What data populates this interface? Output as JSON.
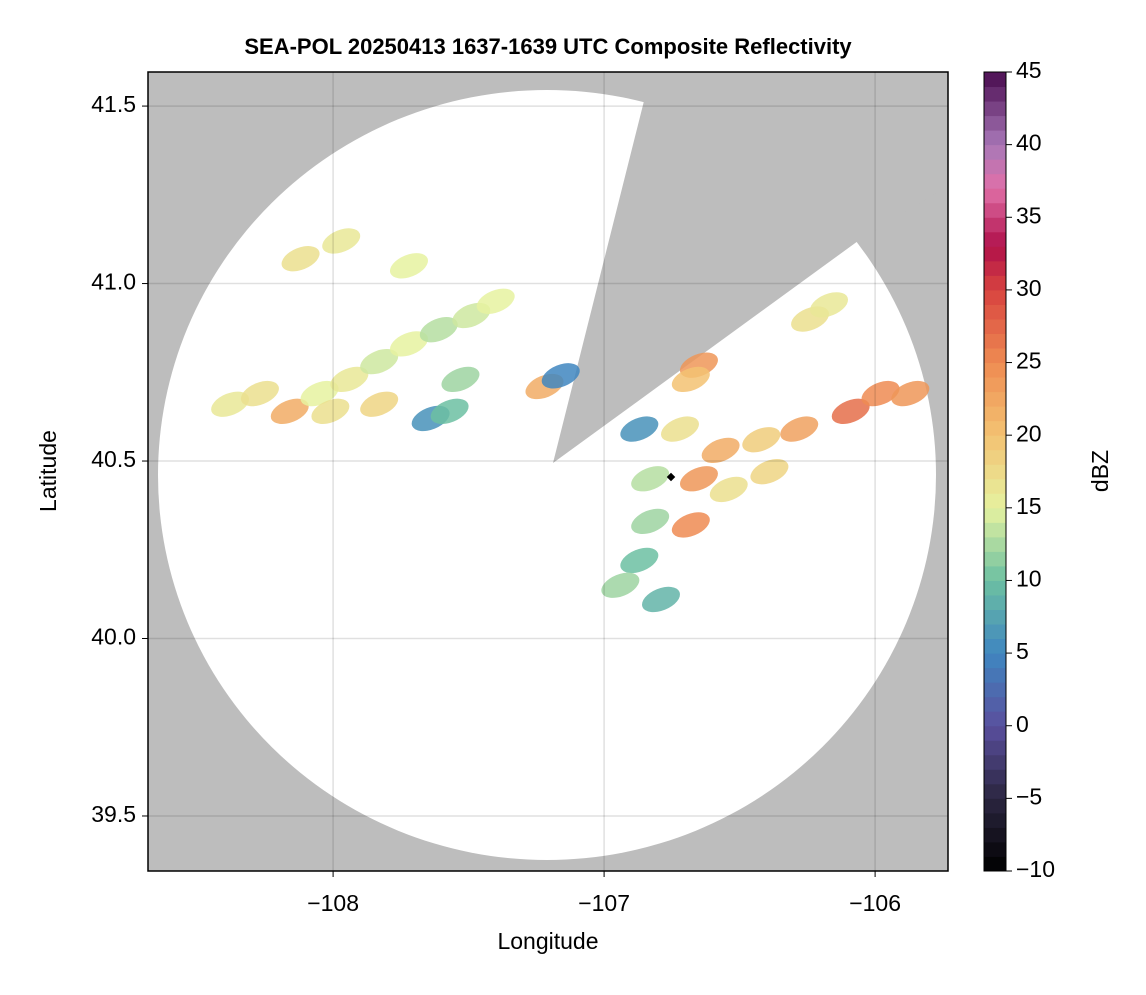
{
  "chart_data": {
    "type": "radar-map",
    "title": "SEA-POL 20250413 1637-1639 UTC Composite Reflectivity",
    "x_label": "Longitude",
    "y_label": "Latitude",
    "colorbar_label": "dBZ",
    "xlim": [
      -108.683,
      -105.731
    ],
    "ylim": [
      39.345,
      41.596
    ],
    "xticks": [
      {
        "value": -108,
        "label": "−108"
      },
      {
        "value": -107,
        "label": "−107"
      },
      {
        "value": -106,
        "label": "−106"
      }
    ],
    "yticks": [
      {
        "value": 39.5,
        "label": "39.5"
      },
      {
        "value": 40.0,
        "label": "40.0"
      },
      {
        "value": 40.5,
        "label": "40.5"
      },
      {
        "value": 41.0,
        "label": "41.0"
      },
      {
        "value": 41.5,
        "label": "41.5"
      }
    ],
    "grid": true,
    "clim": [
      -10,
      45
    ],
    "cticks": [
      {
        "value": -10,
        "label": "−10"
      },
      {
        "value": -5,
        "label": "−5"
      },
      0,
      5,
      10,
      15,
      20,
      25,
      30,
      35,
      40,
      45
    ],
    "colormap": [
      {
        "value": -10,
        "color": "#000000"
      },
      {
        "value": -5,
        "color": "#2b2640"
      },
      {
        "value": 0,
        "color": "#5a4f9e"
      },
      {
        "value": 5,
        "color": "#3f86c0"
      },
      {
        "value": 10,
        "color": "#6cc0a2"
      },
      {
        "value": 15,
        "color": "#e6f2a0"
      },
      {
        "value": 20,
        "color": "#f3c272"
      },
      {
        "value": 25,
        "color": "#ee8b52"
      },
      {
        "value": 30,
        "color": "#d8433f"
      },
      {
        "value": 33,
        "color": "#b0104a"
      },
      {
        "value": 37,
        "color": "#e070a8"
      },
      {
        "value": 40,
        "color": "#a878b8"
      },
      {
        "value": 45,
        "color": "#4a0c50"
      }
    ],
    "echoes": {
      "lon": [
        -108.38,
        -108.27,
        -108.16,
        -108.05,
        -107.94,
        -108.01,
        -107.83,
        -107.72,
        -107.61,
        -107.49,
        -107.4,
        -107.64,
        -107.57,
        -107.53,
        -107.83,
        -108.12,
        -107.97,
        -107.72,
        -107.22,
        -107.16,
        -106.65,
        -106.68,
        -106.87,
        -106.72,
        -106.57,
        -106.42,
        -106.28,
        -106.09,
        -105.98,
        -105.87,
        -106.83,
        -106.65,
        -106.54,
        -106.83,
        -106.68,
        -106.87,
        -106.94,
        -106.79,
        -106.39,
        -106.24,
        -106.17
      ],
      "lat": [
        40.66,
        40.69,
        40.64,
        40.69,
        40.73,
        40.64,
        40.78,
        40.83,
        40.87,
        40.91,
        40.95,
        40.62,
        40.64,
        40.73,
        40.66,
        41.07,
        41.12,
        41.05,
        40.71,
        40.74,
        40.77,
        40.73,
        40.59,
        40.59,
        40.53,
        40.56,
        40.59,
        40.64,
        40.69,
        40.69,
        40.45,
        40.45,
        40.42,
        40.33,
        40.32,
        40.22,
        40.15,
        40.11,
        40.47,
        40.9,
        40.94
      ],
      "dbz": [
        16,
        17,
        22,
        15,
        16,
        17,
        14,
        15,
        13,
        14,
        15,
        6,
        10,
        12,
        18,
        17,
        16,
        15,
        22,
        5,
        24,
        20,
        6,
        17,
        22,
        19,
        23,
        27,
        25,
        24,
        13,
        24,
        17,
        12,
        25,
        10,
        12,
        9,
        18,
        17,
        16
      ]
    }
  }
}
